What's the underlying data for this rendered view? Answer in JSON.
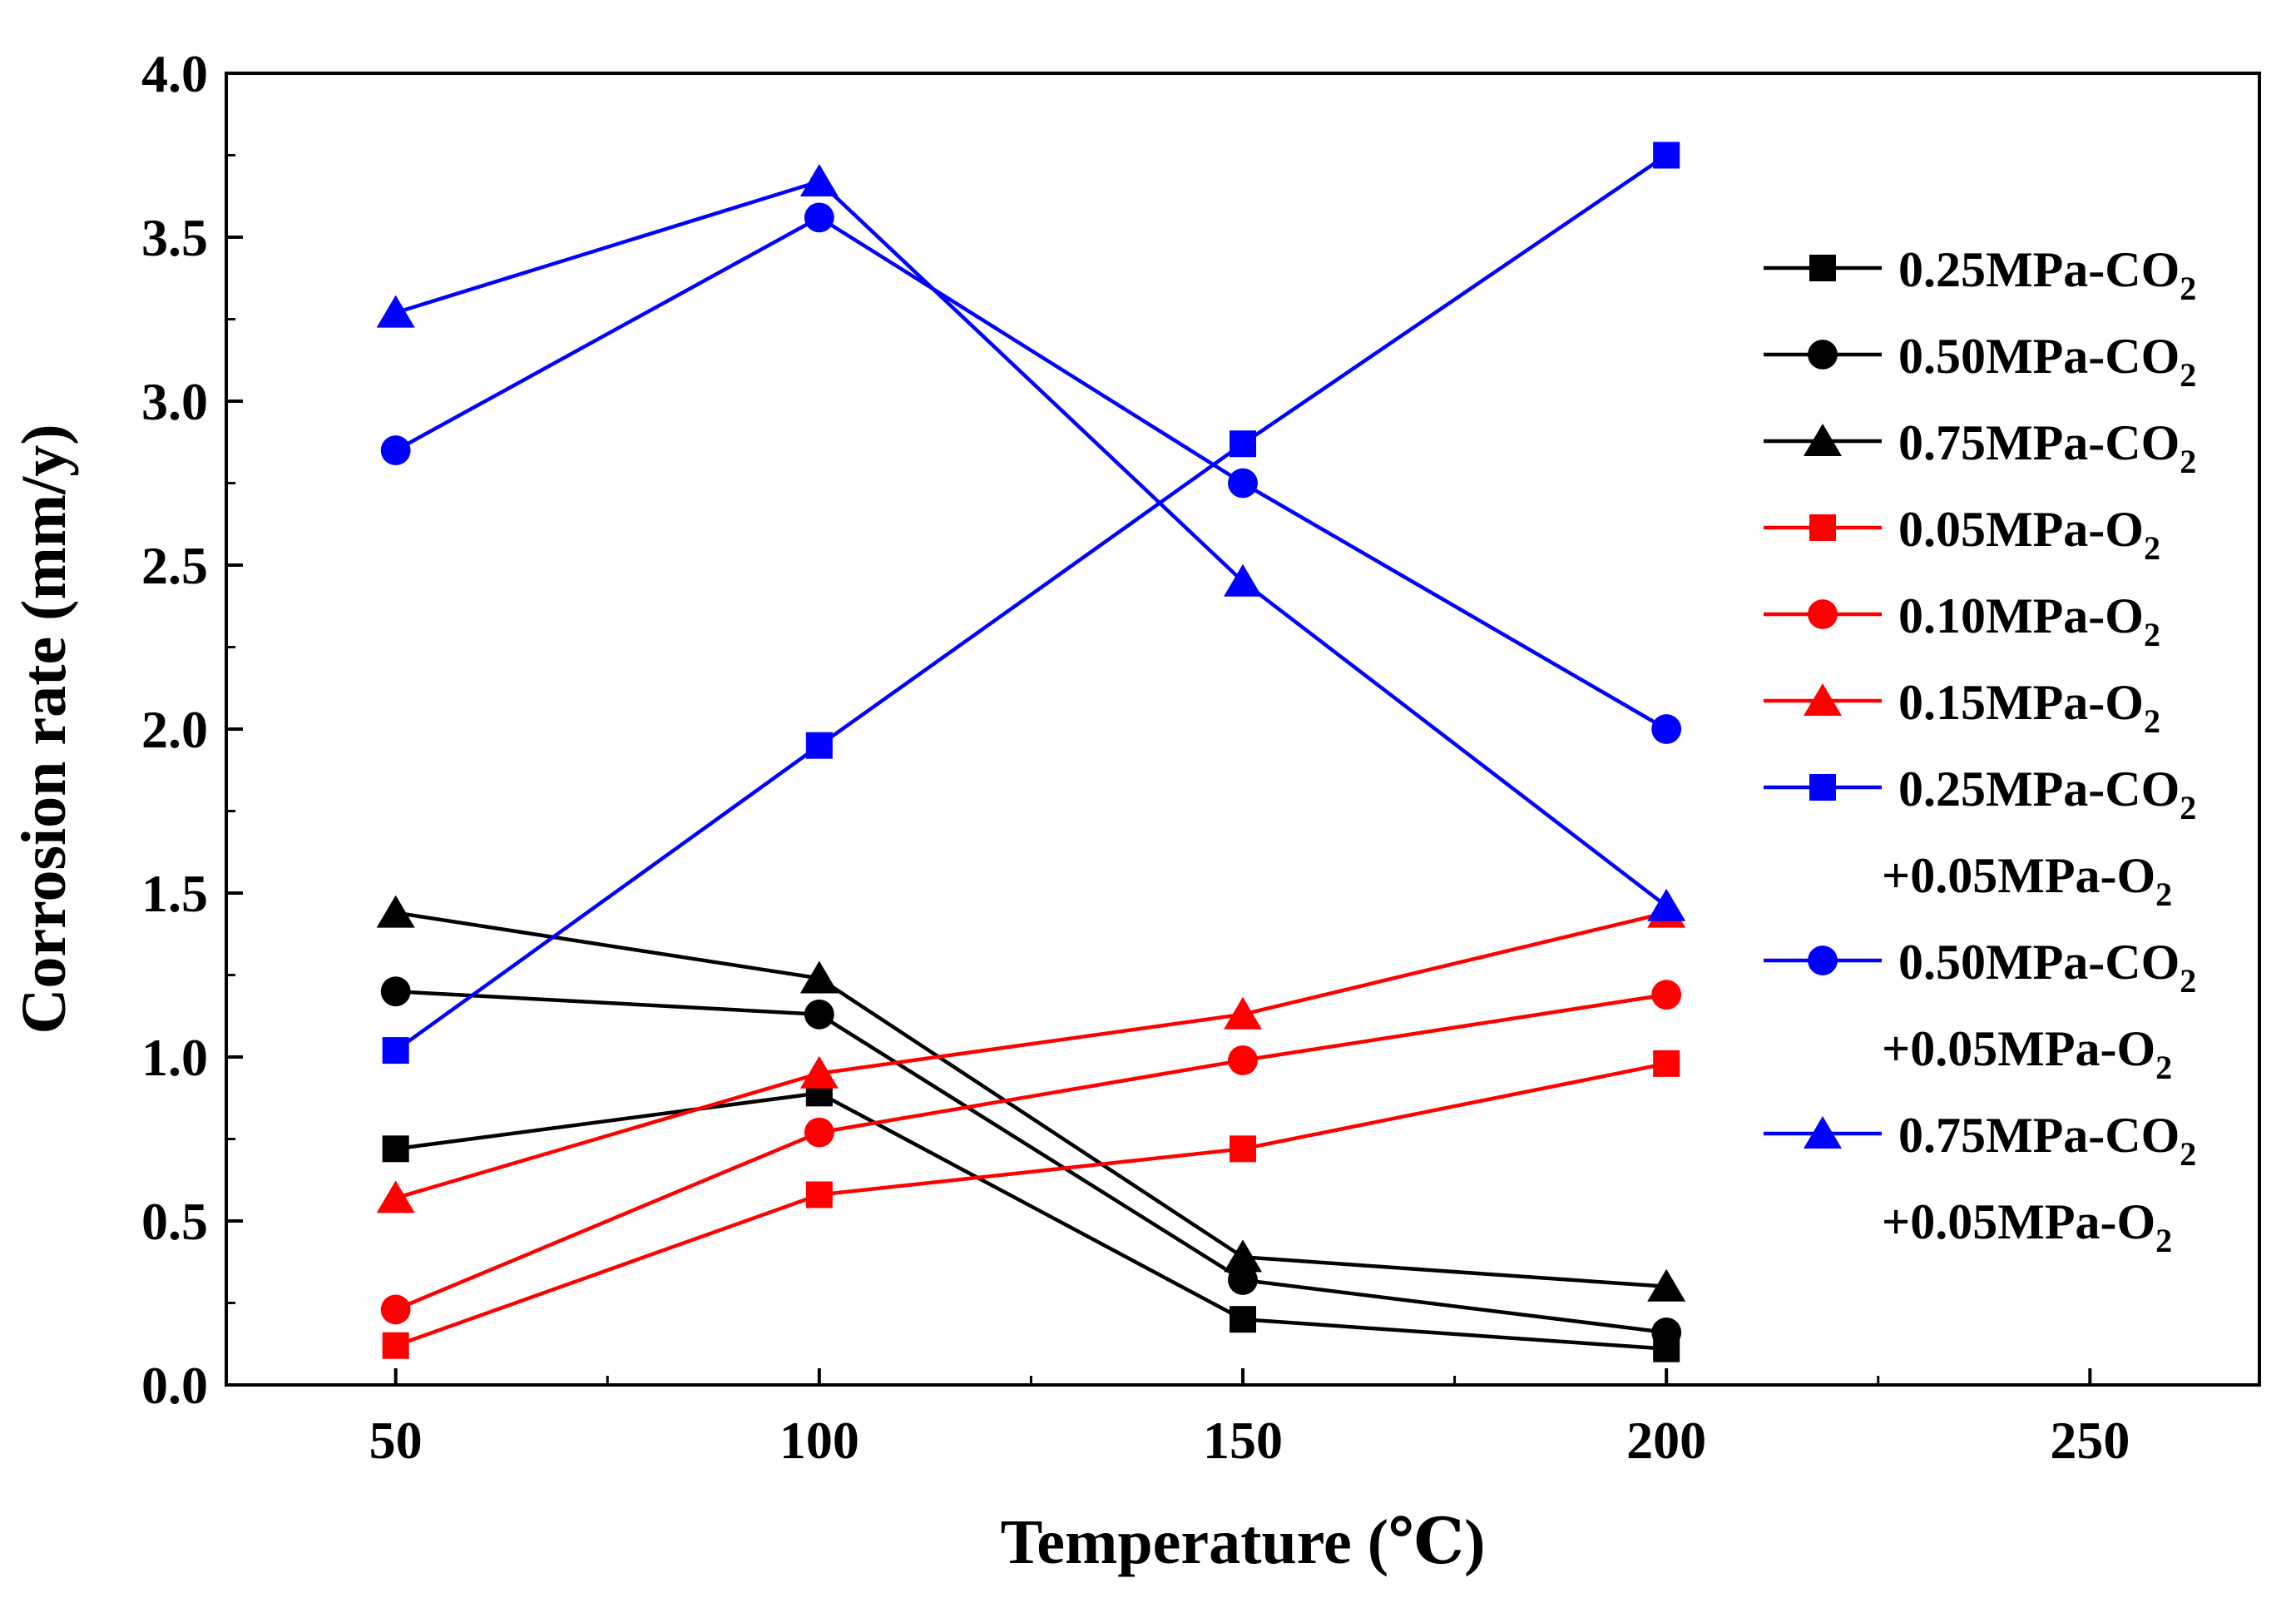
{
  "chart_data": {
    "type": "line",
    "xlabel": "Temperature (℃)",
    "ylabel": "Corrosion rate (mm/y)",
    "xlim": [
      30,
      270
    ],
    "ylim": [
      0,
      4.0
    ],
    "xticks": [
      50,
      100,
      150,
      200,
      250
    ],
    "yticks": [
      0.0,
      0.5,
      1.0,
      1.5,
      2.0,
      2.5,
      3.0,
      3.5,
      4.0
    ],
    "xticklabels": [
      "50",
      "100",
      "150",
      "200",
      "250"
    ],
    "yticklabels": [
      "0.0",
      "0.5",
      "1.0",
      "1.5",
      "2.0",
      "2.5",
      "3.0",
      "3.5",
      "4.0"
    ],
    "legend_position": "right",
    "grid": false,
    "x": [
      50,
      100,
      150,
      200
    ],
    "series": [
      {
        "name": "0.25MPa-CO₂",
        "label_main": "0.25MPa-CO",
        "label_sub": "2",
        "label_line2": "",
        "label_line2_sub": "",
        "color": "#000000",
        "marker": "square",
        "values": [
          0.72,
          0.89,
          0.2,
          0.11
        ]
      },
      {
        "name": "0.50MPa-CO₂",
        "label_main": "0.50MPa-CO",
        "label_sub": "2",
        "label_line2": "",
        "label_line2_sub": "",
        "color": "#000000",
        "marker": "circle",
        "values": [
          1.2,
          1.13,
          0.32,
          0.16
        ]
      },
      {
        "name": "0.75MPa-CO₂",
        "label_main": "0.75MPa-CO",
        "label_sub": "2",
        "label_line2": "",
        "label_line2_sub": "",
        "color": "#000000",
        "marker": "triangle",
        "values": [
          1.44,
          1.24,
          0.39,
          0.3
        ]
      },
      {
        "name": "0.05MPa-O₂",
        "label_main": "0.05MPa-O",
        "label_sub": "2",
        "label_line2": "",
        "label_line2_sub": "",
        "color": "#ff0000",
        "marker": "square",
        "values": [
          0.12,
          0.58,
          0.72,
          0.98
        ]
      },
      {
        "name": "0.10MPa-O₂",
        "label_main": "0.10MPa-O",
        "label_sub": "2",
        "label_line2": "",
        "label_line2_sub": "",
        "color": "#ff0000",
        "marker": "circle",
        "values": [
          0.23,
          0.77,
          0.99,
          1.19
        ]
      },
      {
        "name": "0.15MPa-O₂",
        "label_main": "0.15MPa-O",
        "label_sub": "2",
        "label_line2": "",
        "label_line2_sub": "",
        "color": "#ff0000",
        "marker": "triangle",
        "values": [
          0.57,
          0.95,
          1.13,
          1.44
        ]
      },
      {
        "name": "0.25MPa-CO₂+0.05MPa-O₂",
        "label_main": "0.25MPa-CO",
        "label_sub": "2",
        "label_line2": "+0.05MPa-O",
        "label_line2_sub": "2",
        "color": "#0000ff",
        "marker": "square",
        "values": [
          1.02,
          1.95,
          2.87,
          3.75
        ]
      },
      {
        "name": "0.50MPa-CO₂+0.05MPa-O₂",
        "label_main": "0.50MPa-CO",
        "label_sub": "2",
        "label_line2": "+0.05MPa-O",
        "label_line2_sub": "2",
        "color": "#0000ff",
        "marker": "circle",
        "values": [
          2.85,
          3.56,
          2.75,
          2.0
        ]
      },
      {
        "name": "0.75MPa-CO₂+0.05MPa-O₂",
        "label_main": "0.75MPa-CO",
        "label_sub": "2",
        "label_line2": "+0.05MPa-O",
        "label_line2_sub": "2",
        "color": "#0000ff",
        "marker": "triangle",
        "values": [
          3.27,
          3.67,
          2.45,
          1.46
        ]
      }
    ]
  }
}
